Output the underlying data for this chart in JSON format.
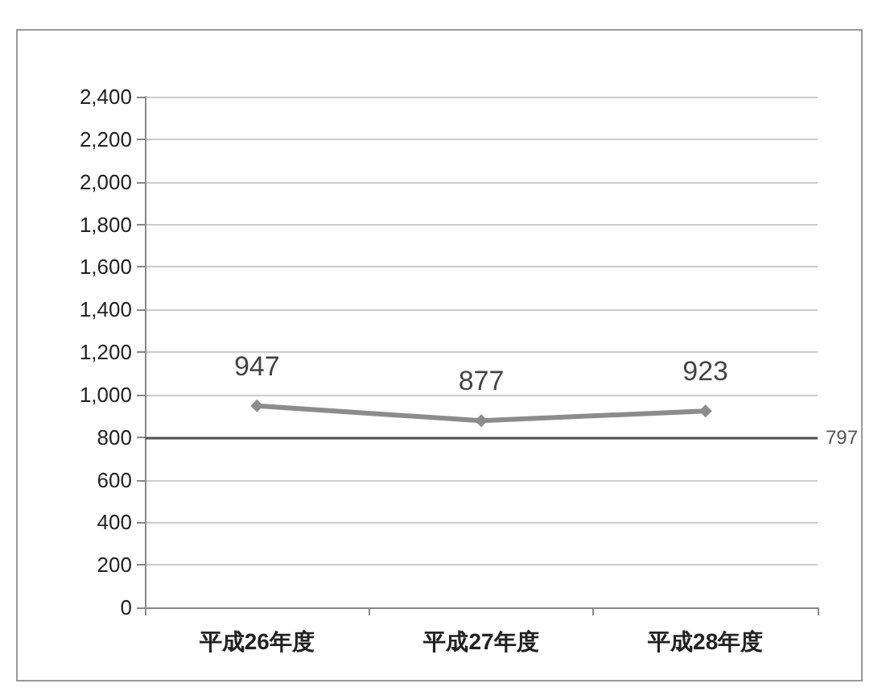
{
  "chart_data": {
    "type": "line",
    "categories": [
      "平成26年度",
      "平成27年度",
      "平成28年度"
    ],
    "series": [
      {
        "color": "#8c8c8c",
        "values": [
          947,
          877,
          923
        ]
      }
    ],
    "ylim": [
      0,
      2400
    ],
    "yticks": [
      0,
      200,
      400,
      600,
      800,
      {
        "value": 1000,
        "label": "1,000"
      },
      {
        "value": 1200,
        "label": "1,200"
      },
      {
        "value": 1400,
        "label": "1,400"
      },
      {
        "value": 1600,
        "label": "1,600"
      },
      {
        "value": 1800,
        "label": "1,800"
      },
      {
        "value": 2000,
        "label": "2,000"
      },
      {
        "value": 2200,
        "label": "2,200"
      },
      {
        "value": 2400,
        "label": "2,400"
      }
    ],
    "ref_lines": [
      {
        "axis": "y",
        "value": 797,
        "label": "797",
        "color": "#555555"
      }
    ],
    "data_labels": true,
    "grid": "y",
    "marker": "diamond",
    "line_style": "solid"
  }
}
